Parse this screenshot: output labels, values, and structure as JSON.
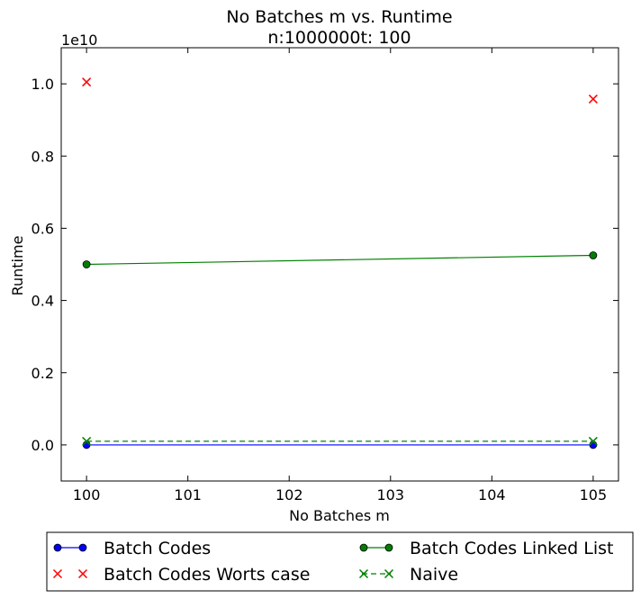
{
  "chart_data": {
    "type": "line",
    "title": "No Batches m vs. Runtime",
    "subtitle": "n:1000000t: 100",
    "xlabel": "No Batches m",
    "ylabel": "Runtime",
    "y_multiplier": "1e10",
    "xlim": [
      99.75,
      105.25
    ],
    "ylim": [
      -0.1,
      1.1
    ],
    "x_ticks": [
      100,
      101,
      102,
      103,
      104,
      105
    ],
    "y_ticks": [
      0.0,
      0.2,
      0.4,
      0.6,
      0.8,
      1.0
    ],
    "x_tick_labels": [
      "100",
      "101",
      "102",
      "103",
      "104",
      "105"
    ],
    "y_tick_labels": [
      "0.0",
      "0.2",
      "0.4",
      "0.6",
      "0.8",
      "1.0"
    ],
    "grid": false,
    "legend_placement": "bottom",
    "series": [
      {
        "name": "Batch Codes",
        "color": "#0000ff",
        "marker": "circle",
        "line": "solid",
        "x": [
          100,
          105
        ],
        "y": [
          0.0,
          0.0
        ]
      },
      {
        "name": "Batch Codes Worts case",
        "color": "#ff0000",
        "marker": "x",
        "line": "none",
        "x": [
          100,
          105
        ],
        "y": [
          1.005,
          0.958
        ]
      },
      {
        "name": "Batch Codes Linked List",
        "color": "#008000",
        "marker": "circle",
        "line": "solid",
        "x": [
          100,
          105
        ],
        "y": [
          0.5,
          0.525
        ]
      },
      {
        "name": "Naive",
        "color": "#008000",
        "marker": "x",
        "line": "dashed",
        "x": [
          100,
          105
        ],
        "y": [
          0.01,
          0.01
        ]
      }
    ]
  }
}
